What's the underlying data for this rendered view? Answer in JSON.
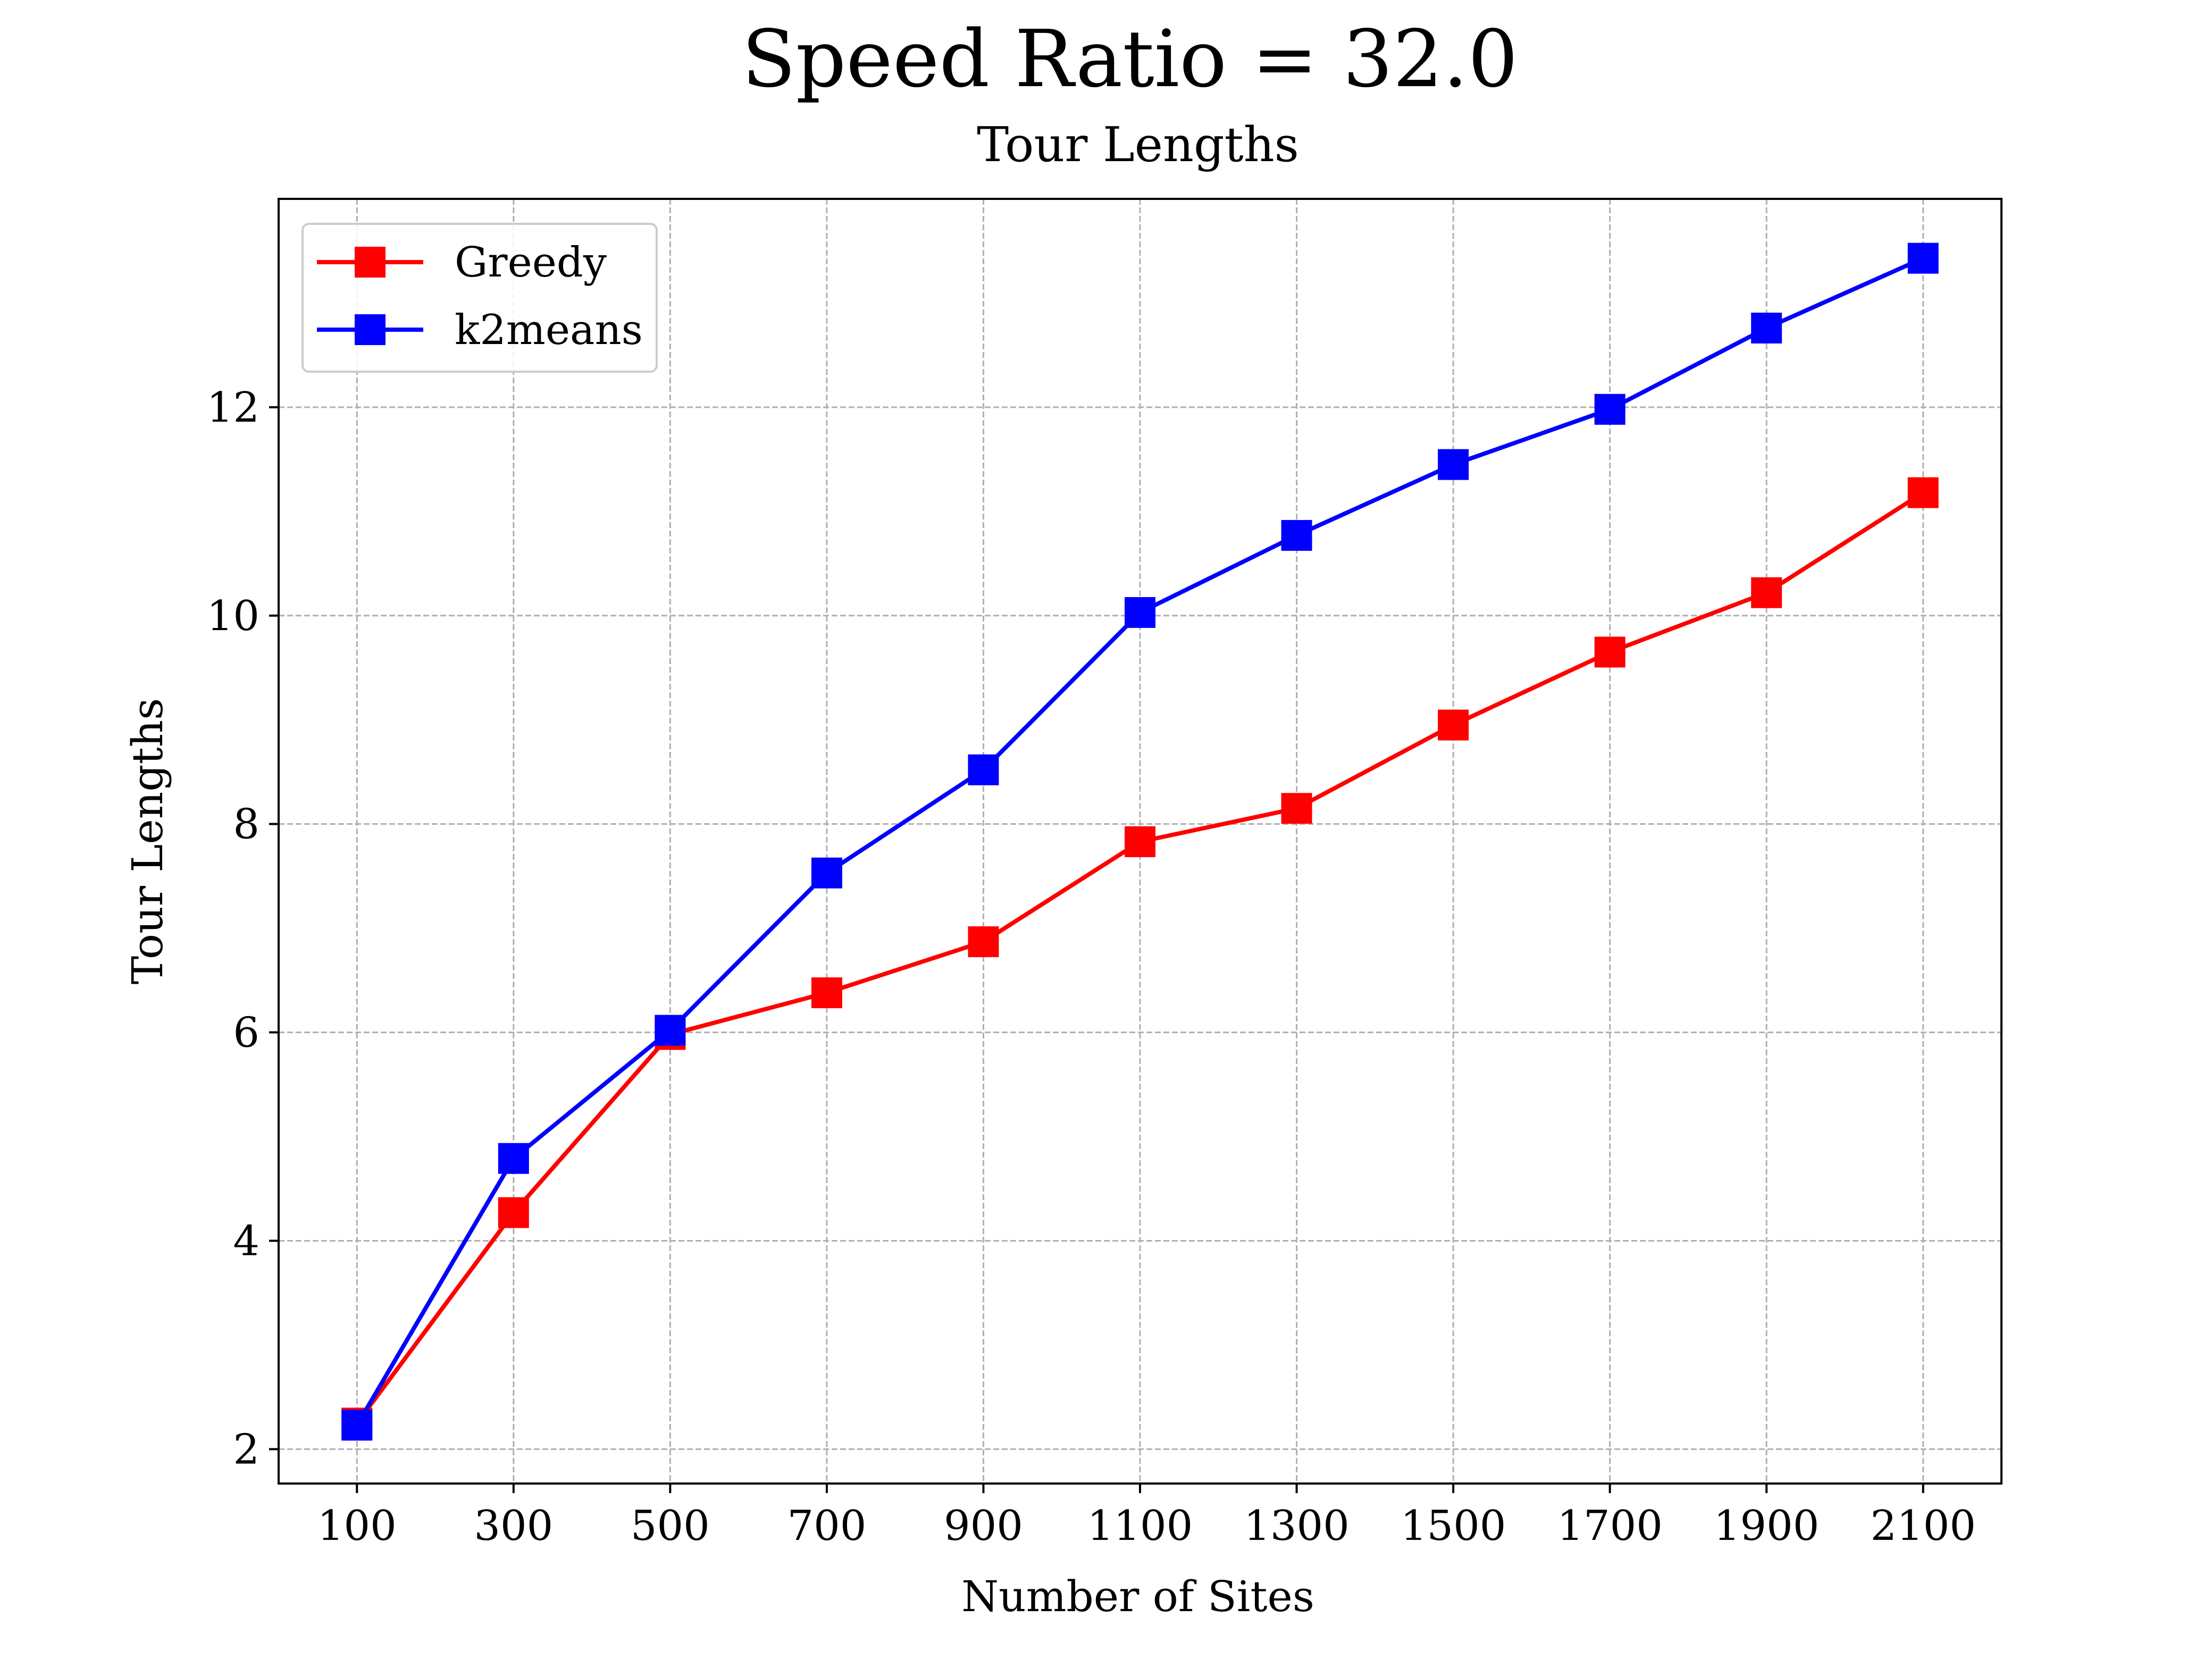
{
  "chart_data": {
    "type": "line",
    "title": "Speed Ratio = 32.0",
    "subtitle": "Tour Lengths",
    "xlabel": "Number of Sites",
    "ylabel": "Tour Lengths",
    "x": [
      100,
      300,
      500,
      700,
      900,
      1100,
      1300,
      1500,
      1700,
      1900,
      2100
    ],
    "x_ticks": [
      "100",
      "300",
      "500",
      "700",
      "900",
      "1100",
      "1300",
      "1500",
      "1700",
      "1900",
      "2100"
    ],
    "y_ticks": [
      "2",
      "4",
      "6",
      "8",
      "10",
      "12"
    ],
    "xlim": [
      0,
      2200
    ],
    "ylim": [
      1.67,
      14.0
    ],
    "grid": true,
    "legend_position": "upper-left",
    "marker": "square",
    "series": [
      {
        "name": "Greedy",
        "color": "#ff0000",
        "values": [
          2.25,
          4.27,
          5.98,
          6.38,
          6.87,
          7.83,
          8.15,
          8.95,
          9.65,
          10.22,
          11.18
        ]
      },
      {
        "name": "k2means",
        "color": "#0000ff",
        "values": [
          2.23,
          4.79,
          6.02,
          7.53,
          8.52,
          10.03,
          10.77,
          11.45,
          11.98,
          12.76,
          13.43
        ]
      }
    ]
  }
}
